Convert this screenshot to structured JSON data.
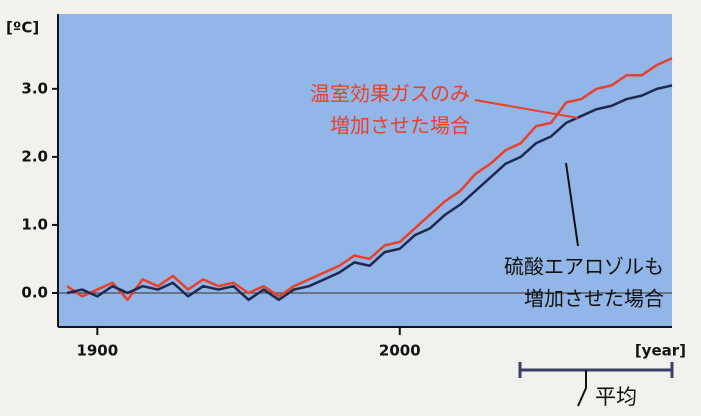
{
  "chart_data": {
    "type": "line",
    "ylabel": "[ºC]",
    "xlabel": "[year]",
    "x": [
      1890,
      1895,
      1900,
      1905,
      1910,
      1915,
      1920,
      1925,
      1930,
      1935,
      1940,
      1945,
      1950,
      1955,
      1960,
      1965,
      1970,
      1975,
      1980,
      1985,
      1990,
      1995,
      2000,
      2005,
      2010,
      2015,
      2020,
      2025,
      2030,
      2035,
      2040,
      2045,
      2050,
      2055,
      2060,
      2065,
      2070,
      2075,
      2080,
      2085,
      2090
    ],
    "series": [
      {
        "name": "温室効果ガスのみ増加させた場合",
        "color": "#e8402a",
        "values": [
          0.1,
          -0.05,
          0.05,
          0.15,
          -0.1,
          0.2,
          0.1,
          0.25,
          0.05,
          0.2,
          0.1,
          0.15,
          0.0,
          0.1,
          -0.05,
          0.1,
          0.2,
          0.3,
          0.4,
          0.55,
          0.5,
          0.7,
          0.75,
          0.95,
          1.15,
          1.35,
          1.5,
          1.75,
          1.9,
          2.1,
          2.2,
          2.45,
          2.5,
          2.8,
          2.85,
          3.0,
          3.05,
          3.2,
          3.2,
          3.35,
          3.45
        ]
      },
      {
        "name": "硫酸エアロゾルも増加させた場合",
        "color": "#1e2850",
        "values": [
          0.0,
          0.05,
          -0.05,
          0.1,
          0.0,
          0.1,
          0.05,
          0.15,
          -0.05,
          0.1,
          0.05,
          0.1,
          -0.1,
          0.05,
          -0.1,
          0.05,
          0.1,
          0.2,
          0.3,
          0.45,
          0.4,
          0.6,
          0.65,
          0.85,
          0.95,
          1.15,
          1.3,
          1.5,
          1.7,
          1.9,
          2.0,
          2.2,
          2.3,
          2.5,
          2.6,
          2.7,
          2.75,
          2.85,
          2.9,
          3.0,
          3.05
        ]
      }
    ],
    "annotations": [
      {
        "lines": [
          "温室効果ガスのみ",
          "増加させた場合"
        ],
        "color": "#e8402a"
      },
      {
        "lines": [
          "硫酸エアロゾルも",
          "増加させた場合"
        ],
        "color": "#111111"
      }
    ],
    "period_label": "平均",
    "xlim": [
      1887,
      2090
    ],
    "xticks": [
      1900,
      2000
    ],
    "ylim": [
      -0.5,
      4.1
    ],
    "yticks": [
      {
        "value": 0,
        "label": "0.0"
      },
      {
        "value": 1,
        "label": "1.0"
      },
      {
        "value": 2,
        "label": "2.0"
      },
      {
        "value": 3,
        "label": "3.0"
      }
    ],
    "plot_color": "#93b6e8"
  }
}
